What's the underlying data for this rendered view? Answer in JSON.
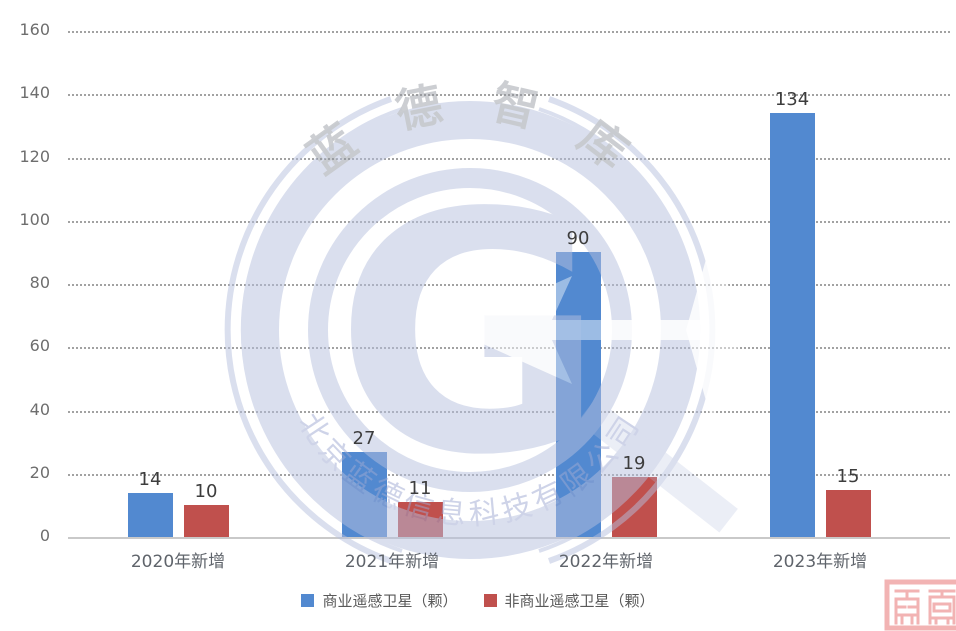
{
  "chart_data": {
    "type": "bar",
    "categories": [
      "2020年新增",
      "2021年新增",
      "2022年新增",
      "2023年新增"
    ],
    "series": [
      {
        "name": "商业遥感卫星（颗）",
        "color": "#5289d0",
        "values": [
          14,
          27,
          90,
          134
        ]
      },
      {
        "name": "非商业遥感卫星（颗）",
        "color": "#c0504d",
        "values": [
          10,
          11,
          19,
          15
        ]
      }
    ],
    "title": "",
    "xlabel": "",
    "ylabel": "",
    "ylim": [
      0,
      160
    ],
    "ytick_interval": 20,
    "yticks": [
      0,
      20,
      40,
      60,
      80,
      100,
      120,
      140,
      160
    ],
    "grid": "dotted-horizontal",
    "legend_position": "bottom"
  },
  "watermark": {
    "arc_title": "蓝 德 智 库",
    "arc_subtitle": "北京蓝德信息科技有限公司",
    "logo_letter": "G",
    "color": "#b6c0de"
  },
  "stamp": {
    "color": "#f2b3b3"
  }
}
